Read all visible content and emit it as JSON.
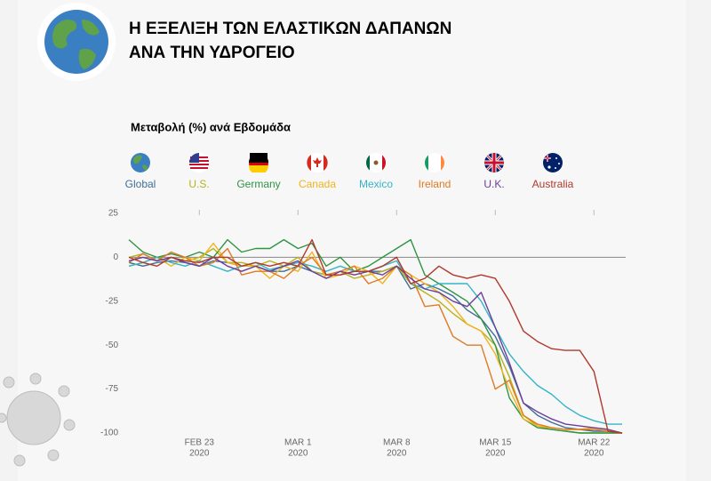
{
  "chart_data": {
    "type": "line",
    "title": [
      "Η ΕΞΕΛΙΞΗ ΤΩΝ ΕΛΑΣΤΙΚΩΝ  ΔΑΠΑΝΩΝ",
      "ΑΝΑ ΤΗΝ ΥΔΡΟΓΕΙΟ"
    ],
    "subtitle": "Μεταβολή (%) ανά Εβδομάδα",
    "x": [
      "2020-02-18",
      "2020-02-19",
      "2020-02-20",
      "2020-02-21",
      "2020-02-22",
      "2020-02-23",
      "2020-02-24",
      "2020-02-25",
      "2020-02-26",
      "2020-02-27",
      "2020-02-28",
      "2020-02-29",
      "2020-03-01",
      "2020-03-02",
      "2020-03-03",
      "2020-03-04",
      "2020-03-05",
      "2020-03-06",
      "2020-03-07",
      "2020-03-08",
      "2020-03-09",
      "2020-03-10",
      "2020-03-11",
      "2020-03-12",
      "2020-03-13",
      "2020-03-14",
      "2020-03-15",
      "2020-03-16",
      "2020-03-17",
      "2020-03-18",
      "2020-03-19",
      "2020-03-20",
      "2020-03-21",
      "2020-03-22",
      "2020-03-23",
      "2020-03-24"
    ],
    "xlim": [
      "2020-02-18",
      "2020-03-24"
    ],
    "xticks": [
      {
        "value": "2020-02-23",
        "label": [
          "FEB 23",
          "2020"
        ]
      },
      {
        "value": "2020-03-01",
        "label": [
          "MAR 1",
          "2020"
        ]
      },
      {
        "value": "2020-03-08",
        "label": [
          "MAR 8",
          "2020"
        ]
      },
      {
        "value": "2020-03-15",
        "label": [
          "MAR 15",
          "2020"
        ]
      },
      {
        "value": "2020-03-22",
        "label": [
          "MAR 22",
          "2020"
        ]
      }
    ],
    "ylim": [
      -100,
      25
    ],
    "yticks": [
      25,
      0,
      -25,
      -50,
      -75,
      -100
    ],
    "series": [
      {
        "name": "Global",
        "color": "#3f6f96",
        "values": [
          -3,
          -5,
          -3,
          -2,
          -3,
          -5,
          -2,
          -3,
          -5,
          -5,
          -8,
          -8,
          -5,
          -8,
          -10,
          -10,
          -8,
          -8,
          -8,
          -5,
          -18,
          -15,
          -18,
          -22,
          -30,
          -35,
          -45,
          -62,
          -83,
          -90,
          -94,
          -97,
          -98,
          -99,
          -99,
          -100
        ]
      },
      {
        "name": "U.S.",
        "color": "#b9b21c",
        "values": [
          0,
          2,
          -2,
          0,
          -2,
          0,
          5,
          -3,
          -3,
          -5,
          -2,
          -5,
          0,
          -8,
          -10,
          -8,
          -12,
          -10,
          -8,
          -5,
          -15,
          -20,
          -25,
          -32,
          -38,
          -42,
          -50,
          -68,
          -90,
          -96,
          -98,
          -99,
          -100,
          -100,
          -100,
          -100
        ]
      },
      {
        "name": "Germany",
        "color": "#2f9444",
        "values": [
          10,
          3,
          0,
          2,
          0,
          3,
          0,
          10,
          3,
          5,
          5,
          10,
          5,
          8,
          -5,
          0,
          -8,
          -5,
          0,
          5,
          10,
          -10,
          -15,
          -20,
          -25,
          -35,
          -50,
          -80,
          -92,
          -97,
          -98,
          -99,
          -100,
          -100,
          -100,
          -100
        ]
      },
      {
        "name": "Canada",
        "color": "#f0b51c",
        "values": [
          -5,
          -3,
          0,
          -5,
          0,
          -2,
          8,
          -3,
          -5,
          -5,
          -12,
          -5,
          -8,
          3,
          -12,
          -10,
          -5,
          -8,
          -15,
          -5,
          -10,
          -15,
          -20,
          -28,
          -38,
          -42,
          -55,
          -75,
          -92,
          -96,
          -97,
          -98,
          -98,
          -97,
          -98,
          -100
        ]
      },
      {
        "name": "Mexico",
        "color": "#33b5c6",
        "values": [
          -5,
          -3,
          0,
          -3,
          -5,
          -2,
          -5,
          -8,
          -5,
          -3,
          -7,
          -5,
          -3,
          -5,
          -8,
          -5,
          -8,
          -8,
          -5,
          -2,
          -15,
          -18,
          -15,
          -15,
          -15,
          -25,
          -40,
          -55,
          -65,
          -73,
          -78,
          -85,
          -90,
          -93,
          -95,
          -95
        ]
      },
      {
        "name": "Ireland",
        "color": "#e07a22",
        "values": [
          -3,
          2,
          -2,
          3,
          0,
          -5,
          -3,
          5,
          -10,
          -8,
          -8,
          -12,
          -5,
          0,
          -10,
          -8,
          -5,
          -15,
          -12,
          -5,
          -10,
          -28,
          -27,
          -45,
          -50,
          -50,
          -75,
          -70,
          -90,
          -95,
          -97,
          -98,
          -98,
          -98,
          -99,
          -100
        ]
      },
      {
        "name": "U.K.",
        "color": "#6b3f99",
        "values": [
          -2,
          0,
          -2,
          0,
          -3,
          -5,
          0,
          -5,
          -8,
          -5,
          -8,
          -5,
          -2,
          -8,
          -12,
          -8,
          -10,
          -8,
          -10,
          -5,
          -12,
          -18,
          -20,
          -25,
          -28,
          -20,
          -40,
          -60,
          -83,
          -88,
          -92,
          -95,
          -96,
          -97,
          -98,
          -100
        ]
      },
      {
        "name": "Australia",
        "color": "#b0392b",
        "values": [
          0,
          -3,
          -5,
          0,
          -2,
          -3,
          0,
          0,
          -5,
          -3,
          -5,
          -3,
          -5,
          10,
          -10,
          -10,
          -8,
          -8,
          -5,
          0,
          -15,
          -12,
          -5,
          -10,
          -12,
          -10,
          -12,
          -25,
          -42,
          -48,
          -52,
          -53,
          -53,
          -65,
          -99,
          -100
        ]
      }
    ]
  }
}
